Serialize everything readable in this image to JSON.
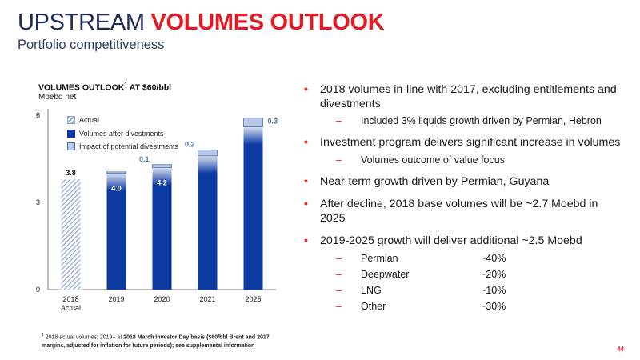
{
  "header": {
    "title_part1": "UPSTREAM ",
    "title_part2": "VOLUMES OUTLOOK",
    "subtitle": "Portfolio competitiveness"
  },
  "chart_header": {
    "title": "VOLUMES OUTLOOK",
    "title_sup": "1",
    "title_suffix": " AT $60/bbl",
    "unit": "Moebd net"
  },
  "legend": {
    "actual": "Actual",
    "volumes": "Volumes after divestments",
    "impact": "Impact of potential divestments"
  },
  "chart_data": {
    "type": "bar",
    "stacked": true,
    "categories": [
      "2018\nActual",
      "2019",
      "2020",
      "2021",
      "2025"
    ],
    "ylim": [
      0,
      6
    ],
    "yticks": [
      0,
      3,
      6
    ],
    "series": [
      {
        "name": "Actual",
        "values": [
          3.8,
          null,
          null,
          null,
          null
        ],
        "label_values": [
          "3.8",
          null,
          null,
          null,
          null
        ],
        "color": "#8aa6d6"
      },
      {
        "name": "Volumes after divestments",
        "values": [
          null,
          4.0,
          4.2,
          4.6,
          5.6
        ],
        "label_values": [
          null,
          "4.0",
          "4.2",
          null,
          null
        ],
        "color": "#0c3aa3"
      },
      {
        "name": "Impact of potential divestments",
        "values": [
          null,
          0.05,
          0.1,
          0.2,
          0.3
        ],
        "label_values": [
          null,
          null,
          "0.1",
          "0.2",
          "0.3"
        ],
        "color": "#b9c8e6"
      }
    ],
    "grid": false,
    "legend_position": "top-left"
  },
  "footnote": {
    "sup": "1",
    "text_a": " 2018 actual volumes; 2019+ at ",
    "text_b": "2018 March Investor Day basis ($60/bbl Brent and 2017 margins, adjusted for inflation for future periods); see supplemental information"
  },
  "bullets": [
    {
      "text": "2018 volumes in-line with 2017, excluding entitlements and divestments",
      "subs": [
        {
          "text": "Included 3% liquids growth driven by Permian, Hebron",
          "pct": ""
        }
      ]
    },
    {
      "text": "Investment program delivers significant increase in volumes",
      "subs": [
        {
          "text": "Volumes outcome of value focus",
          "pct": ""
        }
      ]
    },
    {
      "text": "Near-term growth driven by Permian, Guyana",
      "subs": []
    },
    {
      "text": "After decline, 2018 base volumes will be ~2.7 Moebd in 2025",
      "subs": []
    },
    {
      "text": "2019-2025 growth will deliver additional ~2.5 Moebd",
      "subs": [
        {
          "text": "Permian",
          "pct": "~40%"
        },
        {
          "text": "Deepwater",
          "pct": "~20%"
        },
        {
          "text": "LNG",
          "pct": "~10%"
        },
        {
          "text": "Other",
          "pct": "~30%"
        }
      ]
    }
  ],
  "bullet_marker": "•",
  "sub_marker": "–",
  "page_number": "44",
  "colors": {
    "brand_red": "#e31b23",
    "navy": "#1f2b5a",
    "bar_blue": "#0c3aa3",
    "light_blue": "#b9c8e6"
  }
}
